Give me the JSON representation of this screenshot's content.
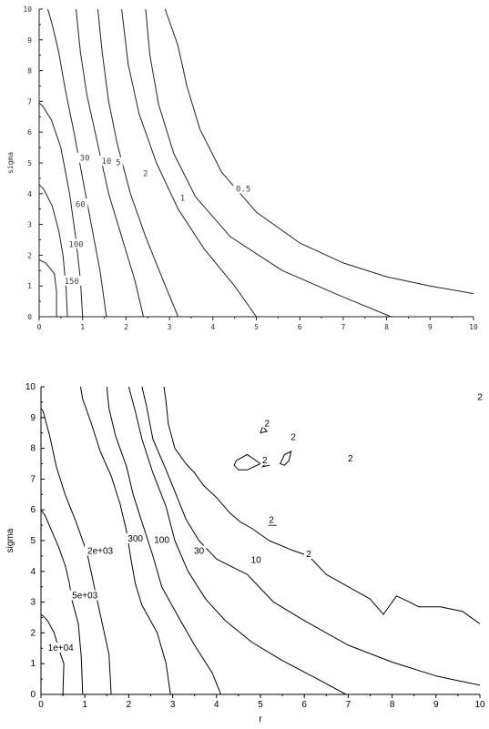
{
  "chart_data": [
    {
      "type": "contour",
      "xlabel": "",
      "ylabel": "sigma",
      "xlim": [
        0,
        10
      ],
      "ylim": [
        0,
        10
      ],
      "xticks": [
        "0",
        "1",
        "2",
        "3",
        "4",
        "5",
        "6",
        "7",
        "8",
        "9",
        "10"
      ],
      "yticks": [
        "0",
        "1",
        "2",
        "3",
        "4",
        "5",
        "6",
        "7",
        "8",
        "9",
        "10"
      ],
      "contour_labels": [
        {
          "text": "150",
          "x": 0.75,
          "y": 1.1
        },
        {
          "text": "100",
          "x": 0.85,
          "y": 2.3
        },
        {
          "text": "60",
          "x": 0.95,
          "y": 3.6
        },
        {
          "text": "30",
          "x": 1.05,
          "y": 5.1
        },
        {
          "text": "10",
          "x": 1.55,
          "y": 5.0
        },
        {
          "text": "5",
          "x": 1.82,
          "y": 4.95
        },
        {
          "text": "2",
          "x": 2.45,
          "y": 4.6
        },
        {
          "text": "1",
          "x": 3.3,
          "y": 3.8
        },
        {
          "text": "0.5",
          "x": 4.7,
          "y": 4.1
        }
      ],
      "levels": [
        {
          "value": "150",
          "points": [
            [
              0.4,
              0
            ],
            [
              0.4,
              0.8
            ],
            [
              0.35,
              1.4
            ],
            [
              0.15,
              1.75
            ],
            [
              0,
              1.85
            ]
          ]
        },
        {
          "value": "100",
          "points": [
            [
              0.65,
              0
            ],
            [
              0.62,
              0.9
            ],
            [
              0.55,
              2.0
            ],
            [
              0.45,
              2.8
            ],
            [
              0.3,
              3.6
            ],
            [
              0.1,
              4.15
            ],
            [
              0,
              4.3
            ]
          ]
        },
        {
          "value": "60",
          "points": [
            [
              1.0,
              0
            ],
            [
              0.95,
              1.2
            ],
            [
              0.85,
              2.5
            ],
            [
              0.7,
              4.0
            ],
            [
              0.5,
              5.5
            ],
            [
              0.28,
              6.4
            ],
            [
              0.08,
              6.85
            ],
            [
              0,
              6.95
            ]
          ]
        },
        {
          "value": "30",
          "points": [
            [
              1.55,
              0
            ],
            [
              1.4,
              1.5
            ],
            [
              1.2,
              3.0
            ],
            [
              1.0,
              4.5
            ],
            [
              0.8,
              6.0
            ],
            [
              0.6,
              7.4
            ],
            [
              0.45,
              8.6
            ],
            [
              0.3,
              9.5
            ],
            [
              0.2,
              10
            ]
          ]
        },
        {
          "value": "10",
          "points": [
            [
              2.4,
              0
            ],
            [
              2.2,
              1.2
            ],
            [
              1.9,
              2.6
            ],
            [
              1.6,
              4.0
            ],
            [
              1.35,
              5.6
            ],
            [
              1.1,
              7.2
            ],
            [
              0.95,
              8.6
            ],
            [
              0.85,
              10
            ]
          ]
        },
        {
          "value": "5",
          "points": [
            [
              3.2,
              0
            ],
            [
              2.85,
              1.2
            ],
            [
              2.45,
              2.6
            ],
            [
              2.1,
              4.0
            ],
            [
              1.8,
              5.6
            ],
            [
              1.6,
              7.0
            ],
            [
              1.45,
              8.6
            ],
            [
              1.35,
              10
            ]
          ]
        },
        {
          "value": "2",
          "points": [
            [
              5.0,
              0
            ],
            [
              4.5,
              1.0
            ],
            [
              3.8,
              2.2
            ],
            [
              3.2,
              3.5
            ],
            [
              2.7,
              5.0
            ],
            [
              2.3,
              6.6
            ],
            [
              2.05,
              8.2
            ],
            [
              1.9,
              10
            ]
          ]
        },
        {
          "value": "1",
          "points": [
            [
              8.1,
              0
            ],
            [
              6.9,
              0.7
            ],
            [
              5.6,
              1.5
            ],
            [
              4.4,
              2.6
            ],
            [
              3.6,
              3.9
            ],
            [
              3.1,
              5.3
            ],
            [
              2.75,
              6.9
            ],
            [
              2.55,
              8.5
            ],
            [
              2.45,
              10
            ]
          ]
        },
        {
          "value": "0.5",
          "points": [
            [
              10,
              0.75
            ],
            [
              9,
              1.0
            ],
            [
              8,
              1.3
            ],
            [
              7,
              1.75
            ],
            [
              6,
              2.4
            ],
            [
              5,
              3.4
            ],
            [
              4.2,
              4.7
            ],
            [
              3.7,
              6.1
            ],
            [
              3.4,
              7.5
            ],
            [
              3.2,
              8.8
            ],
            [
              3.0,
              9.6
            ],
            [
              2.9,
              10
            ]
          ]
        }
      ]
    },
    {
      "type": "contour",
      "xlabel": "r",
      "ylabel": "sigma",
      "xlim": [
        0,
        10
      ],
      "ylim": [
        0,
        10
      ],
      "xticks": [
        "0",
        "1",
        "2",
        "3",
        "4",
        "5",
        "6",
        "7",
        "8",
        "9",
        "10"
      ],
      "yticks": [
        "0",
        "1",
        "2",
        "3",
        "4",
        "5",
        "6",
        "7",
        "8",
        "9",
        "10"
      ],
      "contour_labels": [
        {
          "text": "1e+04",
          "x": 0.45,
          "y": 1.45
        },
        {
          "text": "5e+03",
          "x": 1.0,
          "y": 3.15
        },
        {
          "text": "2e+03",
          "x": 1.35,
          "y": 4.6
        },
        {
          "text": "300",
          "x": 2.15,
          "y": 5.0
        },
        {
          "text": "100",
          "x": 2.75,
          "y": 4.95
        },
        {
          "text": "30",
          "x": 3.6,
          "y": 4.6
        },
        {
          "text": "10",
          "x": 4.9,
          "y": 4.3
        },
        {
          "text": "2",
          "x": 6.1,
          "y": 4.5
        },
        {
          "text": "2",
          "x": 5.25,
          "y": 5.6
        },
        {
          "text": "2",
          "x": 5.1,
          "y": 7.55
        },
        {
          "text": "2",
          "x": 5.15,
          "y": 8.75
        },
        {
          "text": "2",
          "x": 5.75,
          "y": 8.3
        },
        {
          "text": "2",
          "x": 7.05,
          "y": 7.6
        },
        {
          "text": "2",
          "x": 10.0,
          "y": 9.6
        }
      ],
      "levels": [
        {
          "value": "1e+04",
          "points": [
            [
              0.5,
              0
            ],
            [
              0.52,
              1.0
            ],
            [
              0.4,
              1.5
            ],
            [
              0.3,
              2.0
            ],
            [
              0.15,
              2.4
            ],
            [
              0.05,
              2.55
            ],
            [
              0,
              2.6
            ]
          ]
        },
        {
          "value": "5e+03",
          "points": [
            [
              0.95,
              0
            ],
            [
              0.92,
              1.2
            ],
            [
              0.85,
              2.3
            ],
            [
              0.7,
              3.1
            ],
            [
              0.65,
              3.6
            ],
            [
              0.55,
              4.2
            ],
            [
              0.4,
              4.8
            ],
            [
              0.25,
              5.3
            ],
            [
              0.1,
              5.8
            ],
            [
              0,
              6.0
            ]
          ]
        },
        {
          "value": "2e+03",
          "points": [
            [
              1.6,
              0
            ],
            [
              1.55,
              1.3
            ],
            [
              1.35,
              2.6
            ],
            [
              1.2,
              3.6
            ],
            [
              1.05,
              4.6
            ],
            [
              0.8,
              5.6
            ],
            [
              0.55,
              6.5
            ],
            [
              0.35,
              7.4
            ],
            [
              0.2,
              8.4
            ],
            [
              0.05,
              9.2
            ],
            [
              0,
              9.3
            ]
          ]
        },
        {
          "value": "300",
          "points": [
            [
              2.95,
              0
            ],
            [
              2.85,
              1.0
            ],
            [
              2.65,
              2.0
            ],
            [
              2.3,
              2.9
            ],
            [
              2.15,
              3.6
            ],
            [
              2.05,
              4.4
            ],
            [
              1.95,
              5.3
            ],
            [
              1.8,
              6.2
            ],
            [
              1.6,
              7.1
            ],
            [
              1.35,
              7.9
            ],
            [
              1.15,
              8.8
            ],
            [
              0.95,
              9.6
            ],
            [
              0.9,
              10
            ]
          ]
        },
        {
          "value": "100",
          "points": [
            [
              4.1,
              0
            ],
            [
              3.9,
              0.7
            ],
            [
              3.5,
              1.6
            ],
            [
              3.1,
              2.6
            ],
            [
              2.75,
              3.5
            ],
            [
              2.55,
              4.5
            ],
            [
              2.3,
              5.6
            ],
            [
              2.1,
              6.5
            ],
            [
              1.95,
              7.4
            ],
            [
              1.7,
              8.4
            ],
            [
              1.55,
              9.3
            ],
            [
              1.5,
              10
            ]
          ]
        },
        {
          "value": "30",
          "points": [
            [
              6.95,
              0
            ],
            [
              6.3,
              0.5
            ],
            [
              5.5,
              1.1
            ],
            [
              4.8,
              1.7
            ],
            [
              4.2,
              2.4
            ],
            [
              3.75,
              3.1
            ],
            [
              3.35,
              4.0
            ],
            [
              3.05,
              5.0
            ],
            [
              2.85,
              6.1
            ],
            [
              2.55,
              7.2
            ],
            [
              2.3,
              8.3
            ],
            [
              2.15,
              9.2
            ],
            [
              2.0,
              10
            ]
          ]
        },
        {
          "value": "10",
          "points": [
            [
              10,
              0.3
            ],
            [
              9,
              0.6
            ],
            [
              8,
              1.05
            ],
            [
              7,
              1.6
            ],
            [
              6.0,
              2.4
            ],
            [
              5.3,
              3.0
            ],
            [
              4.7,
              3.9
            ],
            [
              4.0,
              4.4
            ],
            [
              3.6,
              5.0
            ],
            [
              3.3,
              5.7
            ],
            [
              3.05,
              6.6
            ],
            [
              2.85,
              7.3
            ],
            [
              2.55,
              8.3
            ],
            [
              2.4,
              9.4
            ],
            [
              2.3,
              10
            ]
          ]
        },
        {
          "value": "2",
          "points": [
            [
              10,
              2.3
            ],
            [
              9.6,
              2.7
            ],
            [
              9.1,
              2.85
            ],
            [
              8.6,
              2.85
            ],
            [
              8.4,
              3.0
            ],
            [
              8.1,
              3.2
            ],
            [
              7.95,
              2.9
            ],
            [
              7.8,
              2.6
            ],
            [
              7.5,
              3.1
            ],
            [
              7.0,
              3.5
            ],
            [
              6.5,
              3.9
            ],
            [
              6.1,
              4.5
            ],
            [
              5.7,
              4.7
            ],
            [
              5.2,
              5.0
            ],
            [
              4.8,
              5.4
            ],
            [
              4.55,
              5.6
            ],
            [
              4.3,
              5.9
            ],
            [
              4.0,
              6.4
            ],
            [
              3.7,
              6.8
            ],
            [
              3.5,
              7.2
            ],
            [
              3.3,
              7.5
            ],
            [
              3.05,
              8.0
            ],
            [
              2.9,
              8.8
            ],
            [
              2.85,
              9.5
            ],
            [
              2.8,
              10
            ]
          ]
        }
      ],
      "islands": [
        [
          [
            4.45,
            7.6
          ],
          [
            4.7,
            7.8
          ],
          [
            4.9,
            7.6
          ],
          [
            5.0,
            7.5
          ],
          [
            4.7,
            7.3
          ],
          [
            4.5,
            7.3
          ],
          [
            4.4,
            7.45
          ],
          [
            4.45,
            7.6
          ]
        ],
        [
          [
            5.45,
            7.5
          ],
          [
            5.55,
            7.8
          ],
          [
            5.7,
            7.9
          ],
          [
            5.65,
            7.6
          ],
          [
            5.55,
            7.45
          ],
          [
            5.45,
            7.5
          ]
        ],
        [
          [
            5.0,
            8.5
          ],
          [
            5.05,
            8.7
          ],
          [
            5.15,
            8.55
          ],
          [
            5.0,
            8.5
          ]
        ],
        [
          [
            5.05,
            7.4
          ],
          [
            5.15,
            7.55
          ],
          [
            5.2,
            7.45
          ],
          [
            5.05,
            7.4
          ]
        ],
        [
          [
            5.2,
            5.5
          ],
          [
            5.3,
            5.6
          ],
          [
            5.35,
            5.5
          ],
          [
            5.2,
            5.5
          ]
        ]
      ]
    }
  ]
}
